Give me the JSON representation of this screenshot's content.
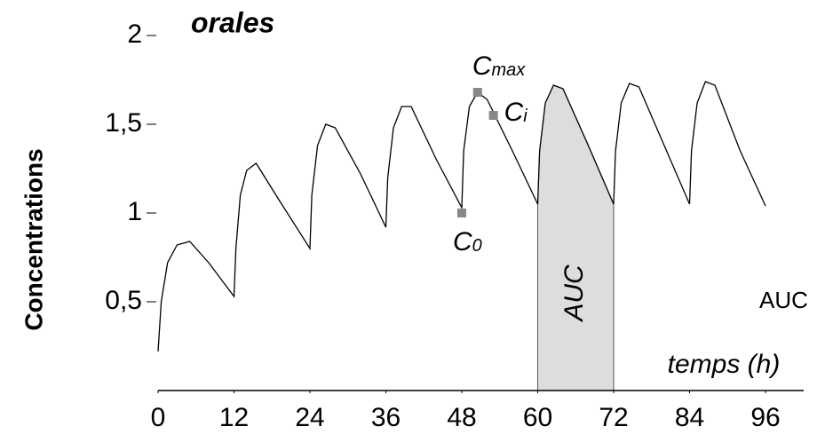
{
  "chart_data": {
    "type": "line",
    "title": "orales",
    "y_label": "Concentrations",
    "x_label": "temps (h)",
    "x": [
      0,
      0.5,
      1.5,
      3,
      5,
      8,
      12,
      12.3,
      13,
      14,
      15.5,
      19,
      24,
      24.3,
      25.2,
      26.5,
      28,
      32,
      36,
      36.3,
      37.2,
      38.5,
      40,
      44,
      48,
      48.3,
      49.2,
      50.5,
      52,
      56,
      60,
      60.3,
      61.2,
      62.5,
      64,
      68,
      72,
      72.3,
      73.2,
      74.5,
      76,
      80,
      84,
      84.3,
      85.2,
      86.5,
      88,
      92,
      96
    ],
    "series": [
      {
        "color": "#000000",
        "values": [
          0.22,
          0.5,
          0.72,
          0.82,
          0.84,
          0.72,
          0.53,
          0.8,
          1.1,
          1.24,
          1.28,
          1.08,
          0.8,
          1.1,
          1.38,
          1.5,
          1.48,
          1.22,
          0.92,
          1.2,
          1.48,
          1.6,
          1.6,
          1.3,
          1.03,
          1.35,
          1.6,
          1.68,
          1.64,
          1.35,
          1.05,
          1.35,
          1.62,
          1.72,
          1.7,
          1.38,
          1.05,
          1.35,
          1.62,
          1.73,
          1.71,
          1.38,
          1.05,
          1.35,
          1.62,
          1.74,
          1.72,
          1.35,
          1.04
        ]
      }
    ],
    "markers": [
      {
        "label": "C",
        "subscript": "max",
        "x": 50.5,
        "y": 1.68
      },
      {
        "label": "C",
        "subscript": "i",
        "x": 53,
        "y": 1.55
      },
      {
        "label": "C",
        "subscript": "0",
        "x": 48,
        "y": 1.0
      }
    ],
    "marker_color": "#888888",
    "auc_range": [
      60,
      72
    ],
    "auc_label": "AUC",
    "auc_color": "#dddddd",
    "side_note": "AUC",
    "xlim": [
      0,
      96
    ],
    "ylim": [
      0,
      2
    ],
    "xticks": [
      0,
      12,
      24,
      36,
      48,
      60,
      72,
      84,
      96
    ],
    "yticks": [
      {
        "value": 0.5,
        "label": "0,5"
      },
      1,
      {
        "value": 1.5,
        "label": "1,5"
      },
      2
    ]
  }
}
